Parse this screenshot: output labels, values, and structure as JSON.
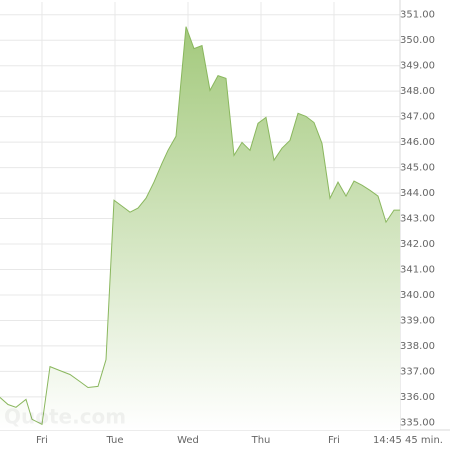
{
  "chart_data": {
    "type": "area",
    "annotation": "14:45 45 min.",
    "watermark": "Quote.com",
    "color": "#8ab75e",
    "fill_color": "#a3c97c",
    "grid": true,
    "xlim": [
      -0.575,
      4.904
    ],
    "ylim": [
      334.7,
      351.5
    ],
    "xticks": [
      {
        "value": 0,
        "label": "Fri"
      },
      {
        "value": 1,
        "label": "Tue"
      },
      {
        "value": 2,
        "label": "Wed"
      },
      {
        "value": 3,
        "label": "Thu"
      },
      {
        "value": 4,
        "label": "Fri"
      }
    ],
    "yticks": [
      {
        "value": 335,
        "label": "335.00"
      },
      {
        "value": 336,
        "label": "336.00"
      },
      {
        "value": 337,
        "label": "337.00"
      },
      {
        "value": 338,
        "label": "338.00"
      },
      {
        "value": 339,
        "label": "339.00"
      },
      {
        "value": 340,
        "label": "340.00"
      },
      {
        "value": 341,
        "label": "341.00"
      },
      {
        "value": 342,
        "label": "342.00"
      },
      {
        "value": 343,
        "label": "343.00"
      },
      {
        "value": 344,
        "label": "344.00"
      },
      {
        "value": 345,
        "label": "345.00"
      },
      {
        "value": 346,
        "label": "346.00"
      },
      {
        "value": 347,
        "label": "347.00"
      },
      {
        "value": 348,
        "label": "348.00"
      },
      {
        "value": 349,
        "label": "349.00"
      },
      {
        "value": 350,
        "label": "350.00"
      },
      {
        "value": 351,
        "label": "351.00"
      }
    ],
    "x": [
      -0.575,
      -0.466,
      -0.356,
      -0.219,
      -0.137,
      0,
      0.11,
      0.247,
      0.384,
      0.521,
      0.63,
      0.767,
      0.877,
      0.986,
      1.096,
      1.205,
      1.315,
      1.425,
      1.534,
      1.644,
      1.726,
      1.836,
      1.973,
      2.082,
      2.192,
      2.301,
      2.411,
      2.521,
      2.63,
      2.74,
      2.849,
      2.959,
      3.068,
      3.178,
      3.288,
      3.397,
      3.507,
      3.616,
      3.726,
      3.836,
      3.945,
      4.055,
      4.164,
      4.274,
      4.384,
      4.493,
      4.603,
      4.712,
      4.822,
      4.904
    ],
    "values": [
      335.98,
      335.7,
      335.59,
      335.9,
      335.12,
      334.92,
      337.19,
      337.03,
      336.88,
      336.6,
      336.37,
      336.41,
      337.46,
      343.72,
      343.49,
      343.25,
      343.41,
      343.8,
      344.43,
      345.17,
      345.68,
      346.23,
      350.53,
      349.67,
      349.79,
      348.03,
      348.61,
      348.5,
      345.48,
      345.99,
      345.68,
      346.74,
      346.97,
      345.29,
      345.76,
      346.07,
      347.13,
      347.01,
      346.77,
      345.95,
      343.8,
      344.43,
      343.88,
      344.47,
      344.31,
      344.11,
      343.88,
      342.86,
      343.33,
      343.33
    ]
  }
}
